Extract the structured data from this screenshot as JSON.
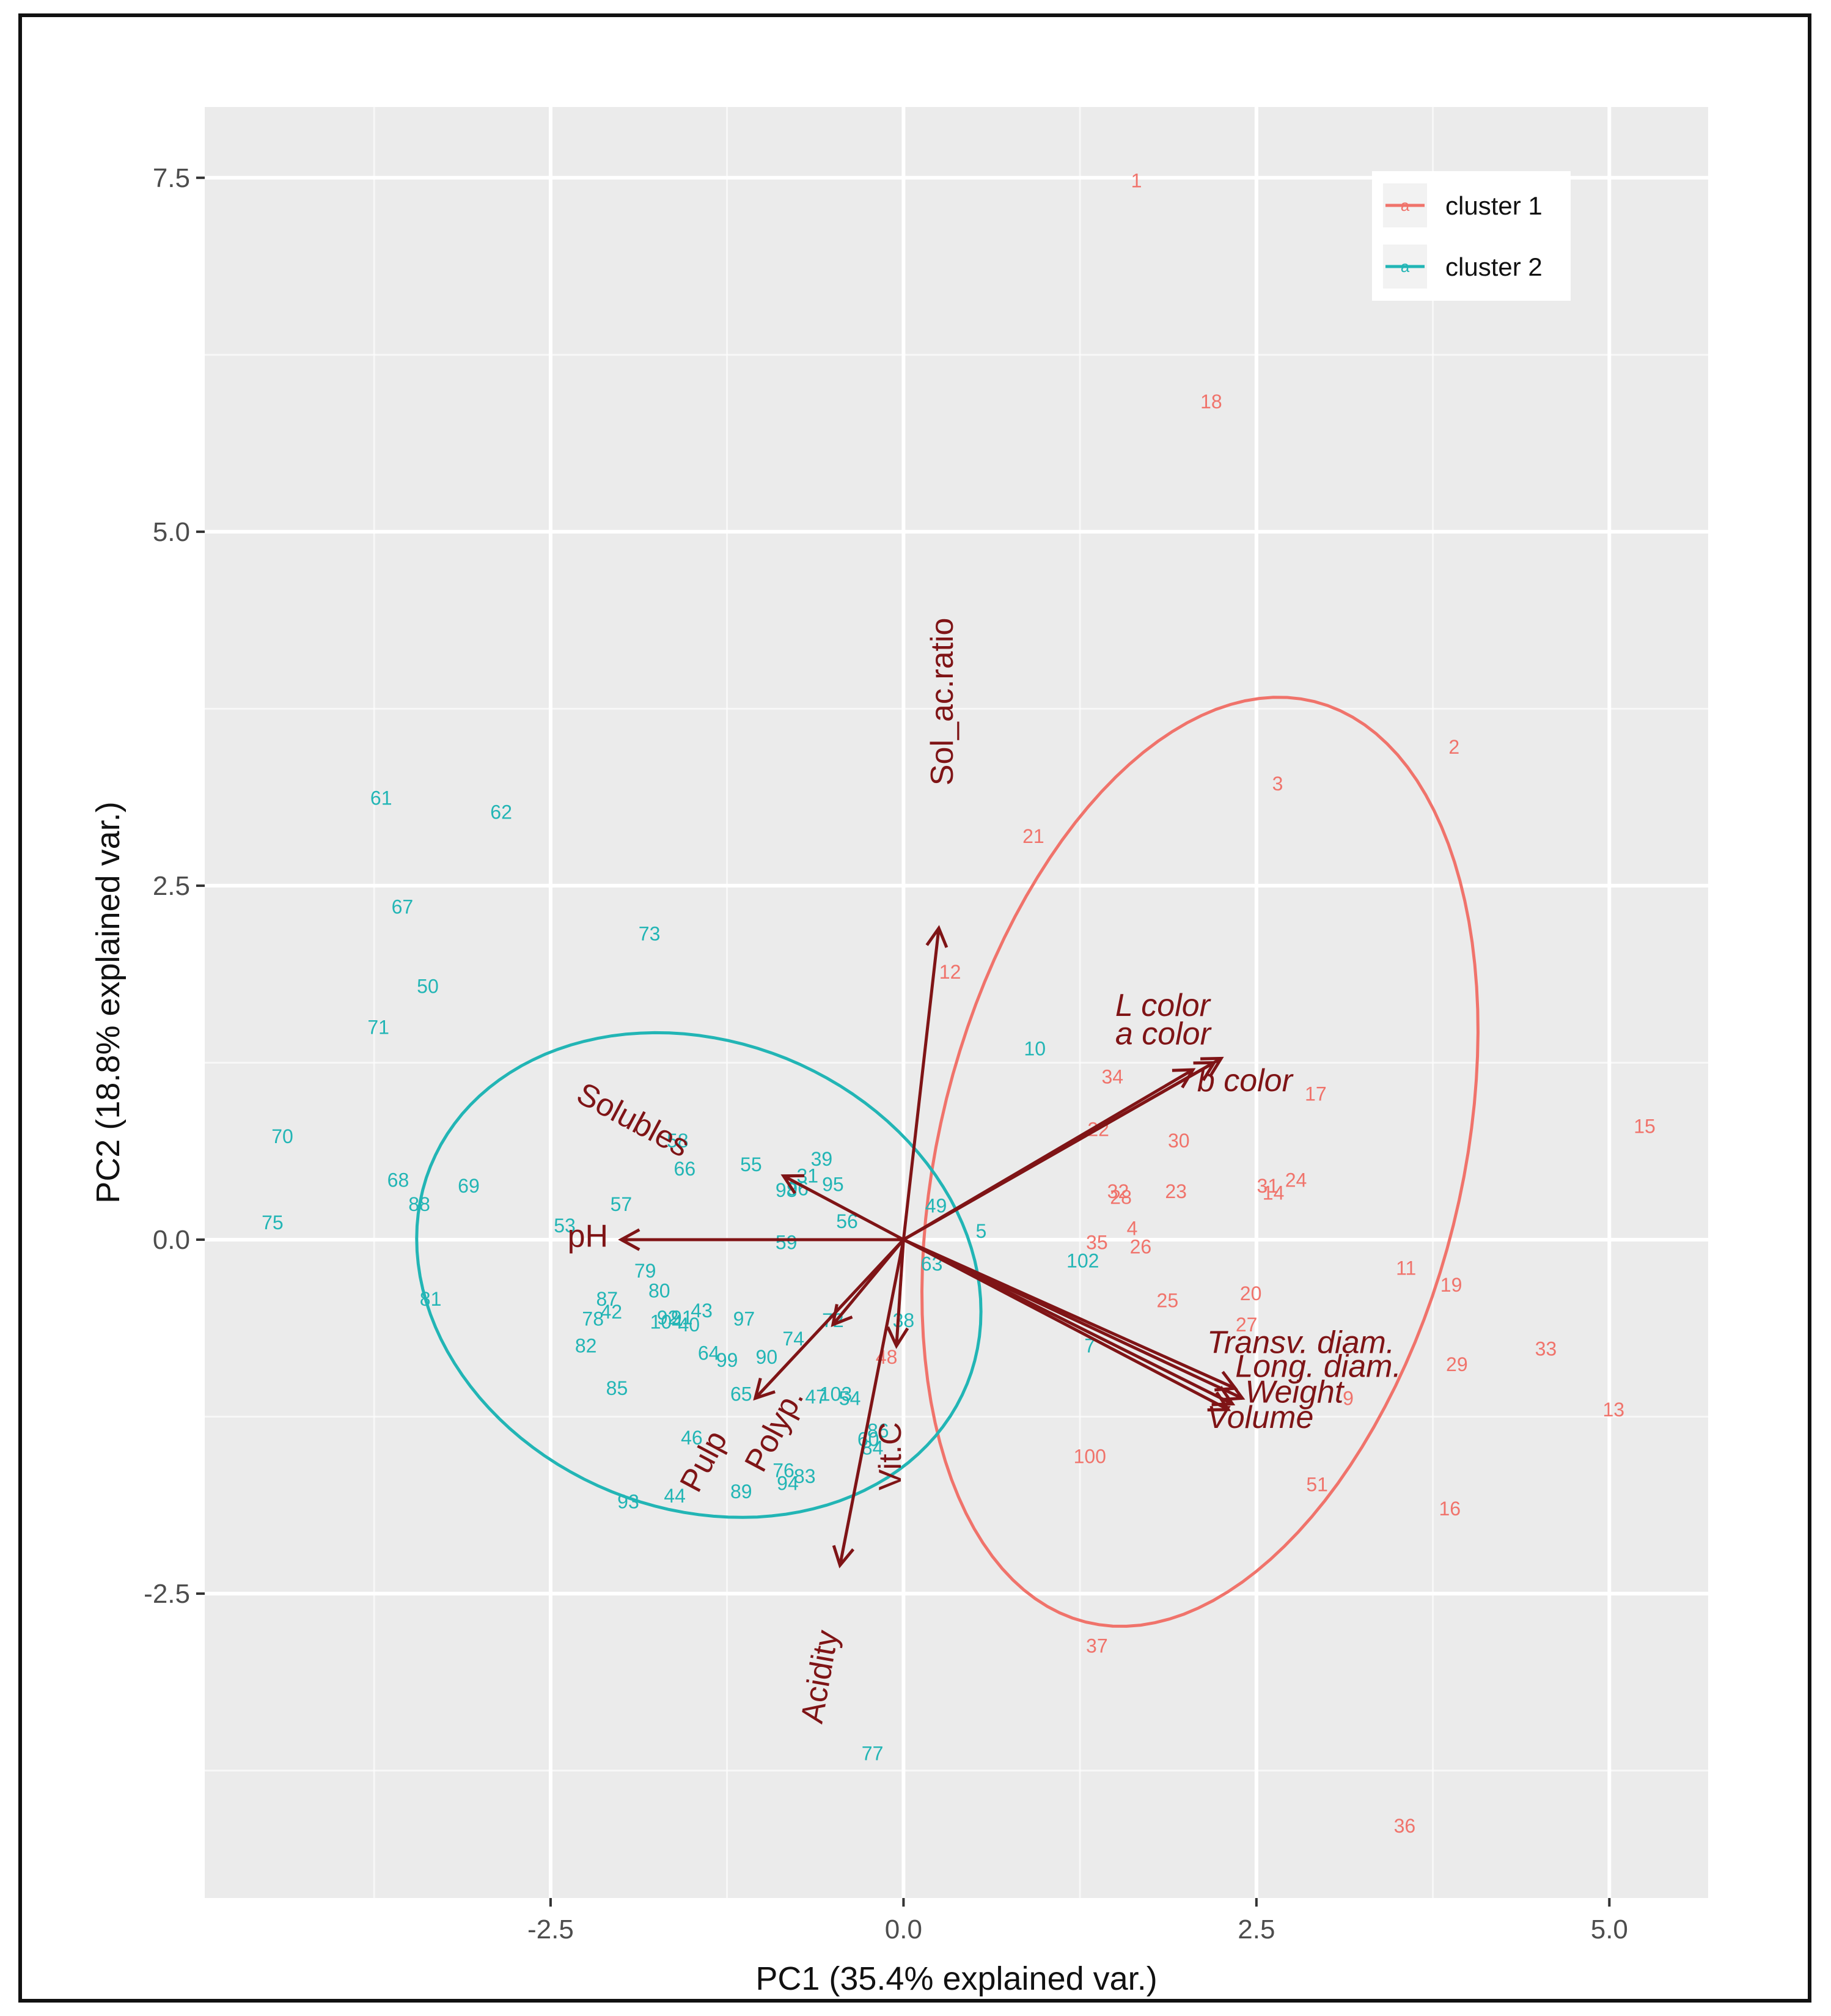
{
  "chart_data": {
    "type": "scatter",
    "subtype": "pca-biplot",
    "xlabel": "PC1 (35.4% explained var.)",
    "ylabel": "PC2 (18.8% explained var.)",
    "xlim": [
      -4.95,
      5.7
    ],
    "ylim": [
      -4.65,
      8.0
    ],
    "x_ticks": [
      -2.5,
      0.0,
      2.5,
      5.0
    ],
    "x_tick_labels": [
      "-2.5",
      "0.0",
      "2.5",
      "5.0"
    ],
    "y_ticks": [
      -2.5,
      0.0,
      2.5,
      5.0,
      7.5
    ],
    "y_tick_labels": [
      "-2.5",
      "0.0",
      "2.5",
      "5.0",
      "7.5"
    ],
    "grid": true,
    "legend_position": "top-right",
    "colors": {
      "cluster1": "#f0736b",
      "cluster2": "#22b5b5",
      "arrow": "#7f1416",
      "panel": "#ebebeb",
      "grid": "#ffffff"
    },
    "series": [
      {
        "name": "cluster 1",
        "color": "#f0736b",
        "ellipse": {
          "cx": 2.1,
          "cy": 0.55,
          "rx": 3.35,
          "ry": 1.85,
          "angle_deg": 76
        },
        "points": [
          {
            "label": "1",
            "x": 1.65,
            "y": 7.48
          },
          {
            "label": "18",
            "x": 2.18,
            "y": 5.92
          },
          {
            "label": "2",
            "x": 3.9,
            "y": 3.48
          },
          {
            "label": "3",
            "x": 2.65,
            "y": 3.22
          },
          {
            "label": "21",
            "x": 0.92,
            "y": 2.85
          },
          {
            "label": "12",
            "x": 0.33,
            "y": 1.89
          },
          {
            "label": "34",
            "x": 1.48,
            "y": 1.15
          },
          {
            "label": "17",
            "x": 2.92,
            "y": 1.03
          },
          {
            "label": "15",
            "x": 5.25,
            "y": 0.8
          },
          {
            "label": "22",
            "x": 1.38,
            "y": 0.78
          },
          {
            "label": "30",
            "x": 1.95,
            "y": 0.7
          },
          {
            "label": "31",
            "x": 2.58,
            "y": 0.38
          },
          {
            "label": "24",
            "x": 2.78,
            "y": 0.42
          },
          {
            "label": "14",
            "x": 2.62,
            "y": 0.33
          },
          {
            "label": "32",
            "x": 1.52,
            "y": 0.34
          },
          {
            "label": "28",
            "x": 1.54,
            "y": 0.3
          },
          {
            "label": "23",
            "x": 1.93,
            "y": 0.34
          },
          {
            "label": "4",
            "x": 1.62,
            "y": 0.08
          },
          {
            "label": "35",
            "x": 1.37,
            "y": -0.02
          },
          {
            "label": "26",
            "x": 1.68,
            "y": -0.05
          },
          {
            "label": "11",
            "x": 3.56,
            "y": -0.2
          },
          {
            "label": "19",
            "x": 3.88,
            "y": -0.32
          },
          {
            "label": "20",
            "x": 2.46,
            "y": -0.38
          },
          {
            "label": "25",
            "x": 1.87,
            "y": -0.43
          },
          {
            "label": "27",
            "x": 2.43,
            "y": -0.6
          },
          {
            "label": "33",
            "x": 4.55,
            "y": -0.77
          },
          {
            "label": "29",
            "x": 3.92,
            "y": -0.88
          },
          {
            "label": "48",
            "x": -0.12,
            "y": -0.83
          },
          {
            "label": "9",
            "x": 3.15,
            "y": -1.12
          },
          {
            "label": "13",
            "x": 5.03,
            "y": -1.2
          },
          {
            "label": "100",
            "x": 1.32,
            "y": -1.53
          },
          {
            "label": "51",
            "x": 2.93,
            "y": -1.73
          },
          {
            "label": "16",
            "x": 3.87,
            "y": -1.9
          },
          {
            "label": "37",
            "x": 1.37,
            "y": -2.87
          },
          {
            "label": "36",
            "x": 3.55,
            "y": -4.14
          }
        ]
      },
      {
        "name": "cluster 2",
        "color": "#22b5b5",
        "ellipse": {
          "cx": -1.45,
          "cy": -0.25,
          "rx": 2.05,
          "ry": 1.65,
          "angle_deg": -22
        },
        "points": [
          {
            "label": "61",
            "x": -3.7,
            "y": 3.12
          },
          {
            "label": "62",
            "x": -2.85,
            "y": 3.02
          },
          {
            "label": "67",
            "x": -3.55,
            "y": 2.35
          },
          {
            "label": "73",
            "x": -1.8,
            "y": 2.16
          },
          {
            "label": "50",
            "x": -3.37,
            "y": 1.79
          },
          {
            "label": "71",
            "x": -3.72,
            "y": 1.5
          },
          {
            "label": "10",
            "x": 0.93,
            "y": 1.35
          },
          {
            "label": "70",
            "x": -4.4,
            "y": 0.73
          },
          {
            "label": "58",
            "x": -1.6,
            "y": 0.7
          },
          {
            "label": "39",
            "x": -0.58,
            "y": 0.57
          },
          {
            "label": "66",
            "x": -1.55,
            "y": 0.5
          },
          {
            "label": "55",
            "x": -1.08,
            "y": 0.53
          },
          {
            "label": "68",
            "x": -3.58,
            "y": 0.42
          },
          {
            "label": "69",
            "x": -3.08,
            "y": 0.38
          },
          {
            "label": "31",
            "x": -0.68,
            "y": 0.45
          },
          {
            "label": "95",
            "x": -0.5,
            "y": 0.39
          },
          {
            "label": "98",
            "x": -0.83,
            "y": 0.35
          },
          {
            "label": "96",
            "x": -0.75,
            "y": 0.36
          },
          {
            "label": "57",
            "x": -2.0,
            "y": 0.25
          },
          {
            "label": "88",
            "x": -3.43,
            "y": 0.25
          },
          {
            "label": "49",
            "x": 0.23,
            "y": 0.24
          },
          {
            "label": "56",
            "x": -0.4,
            "y": 0.13
          },
          {
            "label": "75",
            "x": -4.47,
            "y": 0.12
          },
          {
            "label": "53",
            "x": -2.4,
            "y": 0.1
          },
          {
            "label": "5",
            "x": 0.55,
            "y": 0.06
          },
          {
            "label": "59",
            "x": -0.83,
            "y": -0.02
          },
          {
            "label": "63",
            "x": 0.2,
            "y": -0.17
          },
          {
            "label": "102",
            "x": 1.27,
            "y": -0.15
          },
          {
            "label": "79",
            "x": -1.83,
            "y": -0.22
          },
          {
            "label": "80",
            "x": -1.73,
            "y": -0.36
          },
          {
            "label": "81",
            "x": -3.35,
            "y": -0.42
          },
          {
            "label": "87",
            "x": -2.1,
            "y": -0.42
          },
          {
            "label": "43",
            "x": -1.43,
            "y": -0.5
          },
          {
            "label": "42",
            "x": -2.07,
            "y": -0.51
          },
          {
            "label": "78",
            "x": -2.2,
            "y": -0.56
          },
          {
            "label": "92",
            "x": -1.67,
            "y": -0.55
          },
          {
            "label": "91",
            "x": -1.57,
            "y": -0.55
          },
          {
            "label": "104",
            "x": -1.68,
            "y": -0.58
          },
          {
            "label": "40",
            "x": -1.52,
            "y": -0.6
          },
          {
            "label": "97",
            "x": -1.13,
            "y": -0.56
          },
          {
            "label": "72",
            "x": -0.5,
            "y": -0.57
          },
          {
            "label": "38",
            "x": 0.0,
            "y": -0.57
          },
          {
            "label": "74",
            "x": -0.78,
            "y": -0.7
          },
          {
            "label": "7",
            "x": 1.32,
            "y": -0.75
          },
          {
            "label": "82",
            "x": -2.25,
            "y": -0.75
          },
          {
            "label": "64",
            "x": -1.38,
            "y": -0.8
          },
          {
            "label": "99",
            "x": -1.25,
            "y": -0.85
          },
          {
            "label": "90",
            "x": -0.97,
            "y": -0.83
          },
          {
            "label": "85",
            "x": -2.03,
            "y": -1.05
          },
          {
            "label": "65",
            "x": -1.15,
            "y": -1.09
          },
          {
            "label": "47",
            "x": -0.62,
            "y": -1.11
          },
          {
            "label": "103",
            "x": -0.48,
            "y": -1.09
          },
          {
            "label": "54",
            "x": -0.38,
            "y": -1.12
          },
          {
            "label": "46",
            "x": -1.5,
            "y": -1.4
          },
          {
            "label": "86",
            "x": -0.18,
            "y": -1.35
          },
          {
            "label": "60",
            "x": -0.25,
            "y": -1.41
          },
          {
            "label": "84",
            "x": -0.22,
            "y": -1.47
          },
          {
            "label": "76",
            "x": -0.85,
            "y": -1.63
          },
          {
            "label": "83",
            "x": -0.7,
            "y": -1.67
          },
          {
            "label": "94",
            "x": -0.82,
            "y": -1.72
          },
          {
            "label": "89",
            "x": -1.15,
            "y": -1.78
          },
          {
            "label": "44",
            "x": -1.62,
            "y": -1.81
          },
          {
            "label": "93",
            "x": -1.95,
            "y": -1.85
          },
          {
            "label": "77",
            "x": -0.22,
            "y": -3.63
          }
        ]
      }
    ],
    "loadings": [
      {
        "label": "Sol_ac.ratio",
        "x": 0.25,
        "y": 2.2,
        "label_x": 0.35,
        "label_y": 3.8,
        "rotate": -90,
        "italic": false
      },
      {
        "label": "L color",
        "x": 2.25,
        "y": 1.28,
        "label_x": 1.5,
        "label_y": 1.58,
        "rotate": 0,
        "italic": true
      },
      {
        "label": "a color",
        "x": 2.2,
        "y": 1.25,
        "label_x": 1.5,
        "label_y": 1.38,
        "rotate": 0,
        "italic": true
      },
      {
        "label": "b color",
        "x": 2.05,
        "y": 1.2,
        "label_x": 2.08,
        "label_y": 1.05,
        "rotate": 0,
        "italic": true
      },
      {
        "label": "Solubles",
        "x": -0.85,
        "y": 0.45,
        "label_x": -1.95,
        "label_y": 0.78,
        "rotate": 28,
        "italic": false
      },
      {
        "label": "pH",
        "x": -2.0,
        "y": 0.0,
        "label_x": -2.38,
        "label_y": -0.05,
        "rotate": 0,
        "italic": false
      },
      {
        "label": "Transv. diam.",
        "x": 2.35,
        "y": -1.05,
        "label_x": 2.15,
        "label_y": -0.8,
        "rotate": 0,
        "italic": true
      },
      {
        "label": "Long. diam.",
        "x": 2.4,
        "y": -1.12,
        "label_x": 2.35,
        "label_y": -0.97,
        "rotate": 0,
        "italic": true
      },
      {
        "label": "Weight",
        "x": 2.33,
        "y": -1.16,
        "label_x": 2.42,
        "label_y": -1.15,
        "rotate": 0,
        "italic": true
      },
      {
        "label": "Volume",
        "x": 2.3,
        "y": -1.2,
        "label_x": 2.15,
        "label_y": -1.33,
        "rotate": 0,
        "italic": true
      },
      {
        "label": "Pulp",
        "x": -0.5,
        "y": -0.6,
        "label_x": -1.35,
        "label_y": -1.6,
        "rotate": -62,
        "italic": false
      },
      {
        "label": "Polyp.",
        "x": -1.05,
        "y": -1.12,
        "label_x": -0.85,
        "label_y": -1.38,
        "rotate": -62,
        "italic": false
      },
      {
        "label": "Vit.C",
        "x": -0.05,
        "y": -0.75,
        "label_x": -0.02,
        "label_y": -1.53,
        "rotate": -90,
        "italic": false
      },
      {
        "label": "Acidity",
        "x": -0.45,
        "y": -2.3,
        "label_x": -0.52,
        "label_y": -3.1,
        "rotate": -80,
        "italic": false
      }
    ],
    "legend": [
      {
        "label": "cluster 1",
        "color": "#f0736b"
      },
      {
        "label": "cluster 2",
        "color": "#22b5b5"
      }
    ]
  }
}
